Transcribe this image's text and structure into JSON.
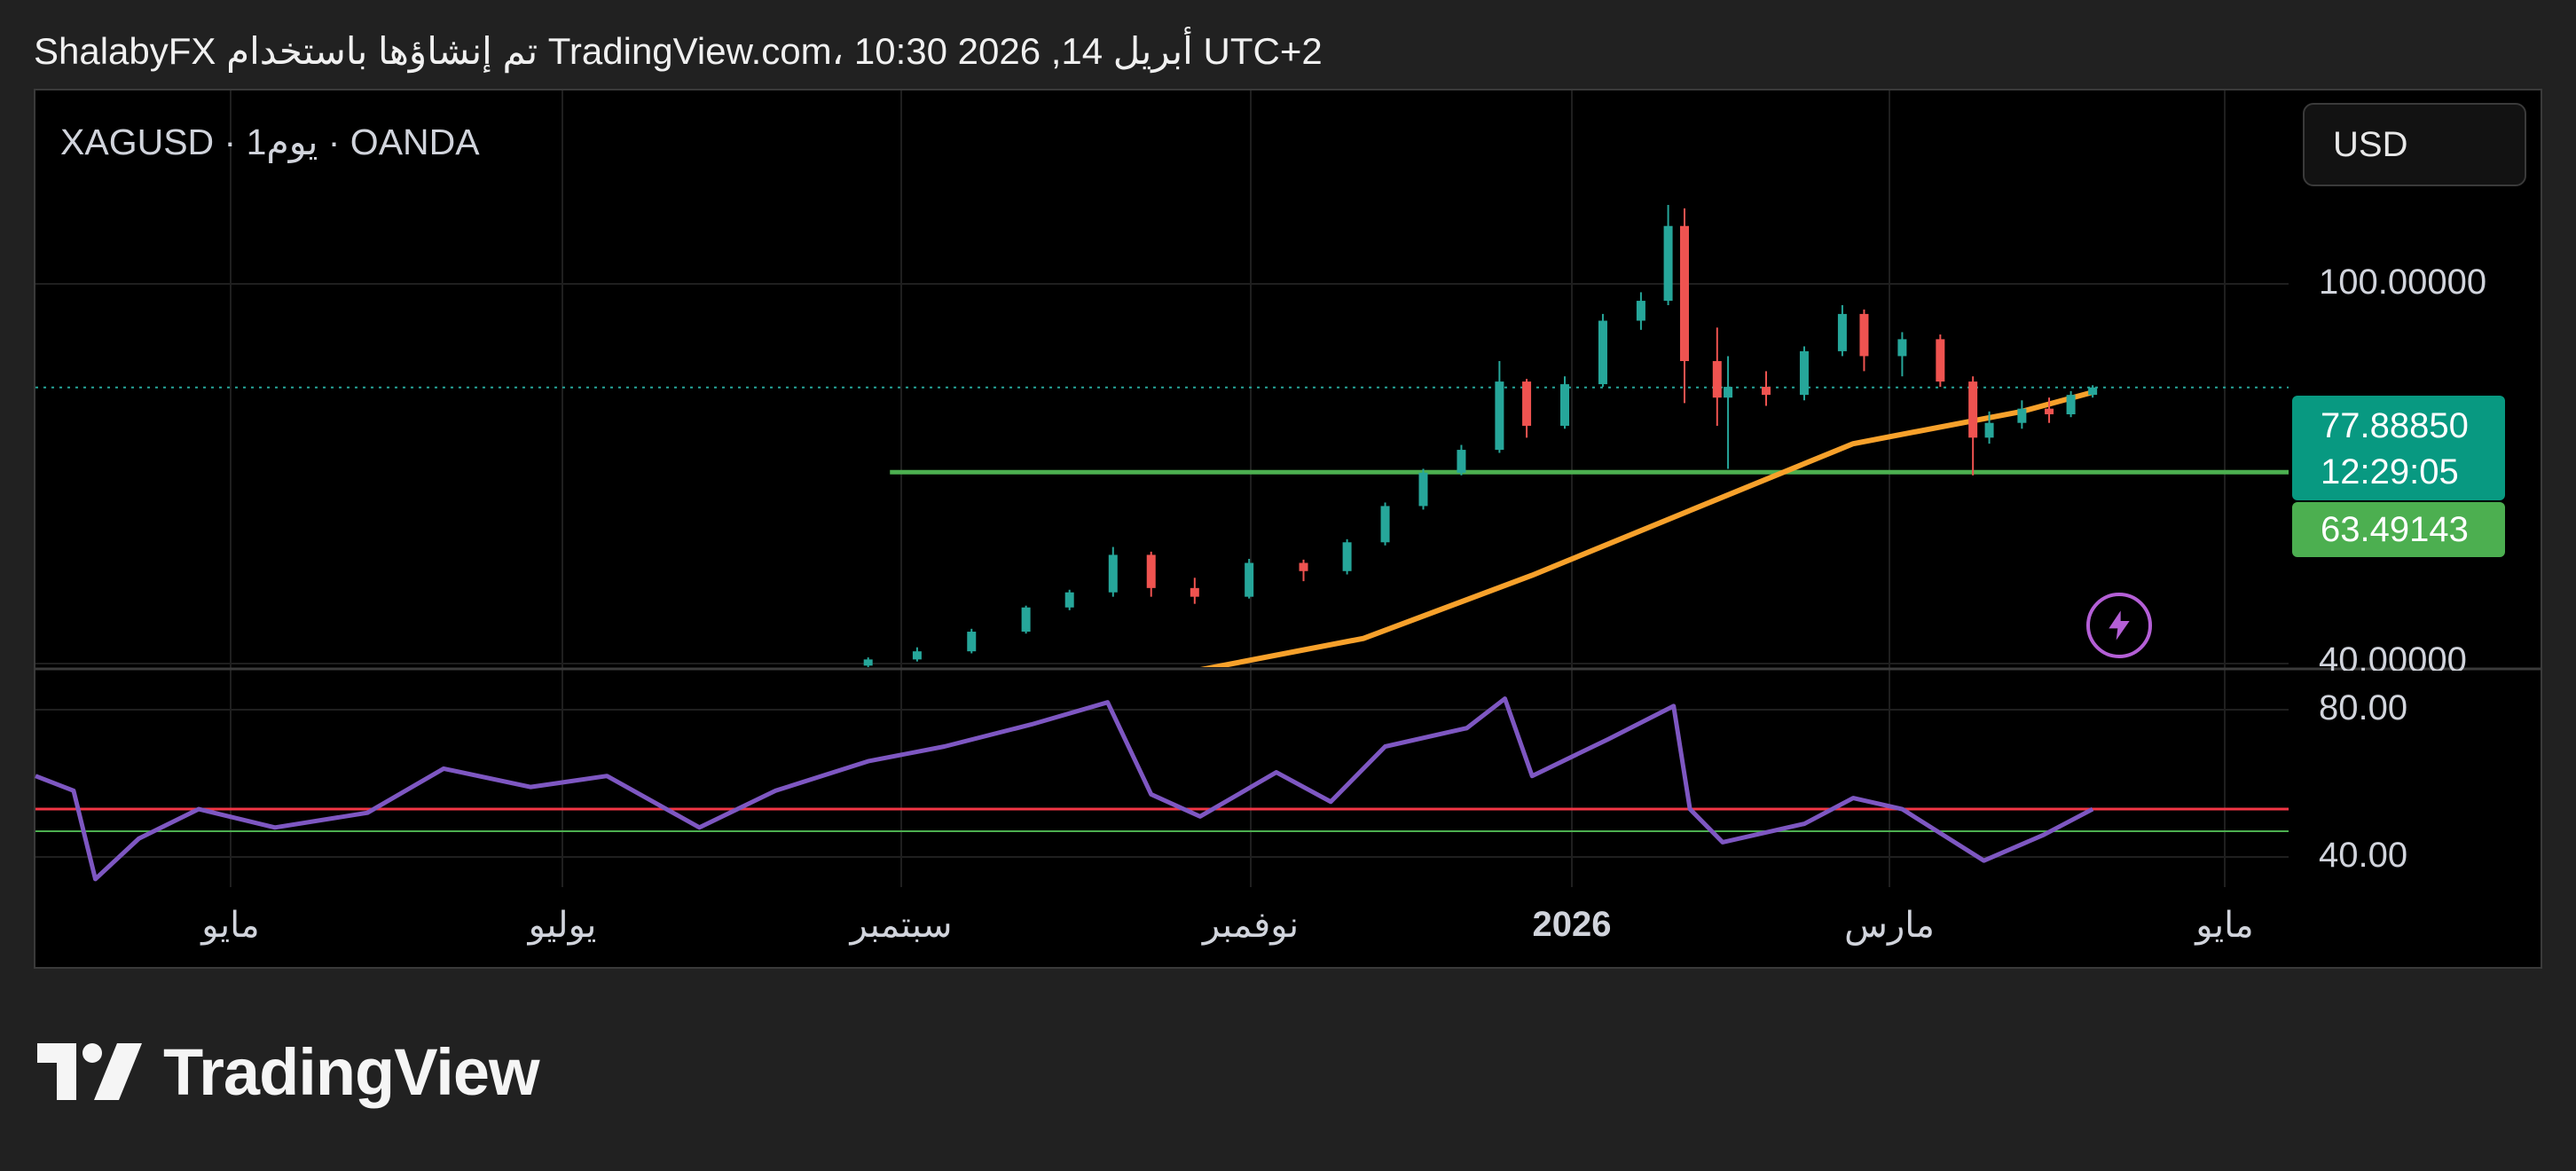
{
  "header": {
    "attribution": "ShalabyFX تم إنشاؤها باستخدام TradingView.com، 10:30 2026 ,14 أبريل UTC+2"
  },
  "symbol": {
    "label": "XAGUSD · 1يوم · OANDA"
  },
  "currency_button": {
    "label": "USD"
  },
  "price_tags": {
    "current_price": "77.88850",
    "countdown": "12:29:05",
    "level_price": "63.49143"
  },
  "price_axis": {
    "labels": [
      "100.00000",
      "40.00000"
    ]
  },
  "rsi_axis": {
    "labels": [
      "80.00",
      "40.00"
    ]
  },
  "time_axis": {
    "labels": [
      "مايو",
      "يوليو",
      "سبتمبر",
      "نوفمبر",
      "2026",
      "مارس",
      "مايو"
    ]
  },
  "logo": {
    "text": "TradingView"
  },
  "colors": {
    "background": "#212121",
    "chart_bg": "#000000",
    "up_candle": "#26a69a",
    "down_candle": "#ef5350",
    "moving_average": "#f7a12b",
    "support_line": "#4caf50",
    "rsi_line": "#7e57c2",
    "rsi_upper_line": "#f23645",
    "rsi_lower_line": "#4caf50",
    "current_tag": "#089981",
    "level_tag": "#4caf50",
    "bolt": "#b45fd6"
  },
  "icons": {
    "alert": "lightning-bolt-icon",
    "brand": "tradingview-logo-icon"
  },
  "chart_data": [
    {
      "type": "candlestick",
      "symbol": "XAGUSD",
      "interval": "1D",
      "x_range": [
        "2025-04-01",
        "2026-05-20"
      ],
      "y_scale": "log",
      "y_ticks": [
        40,
        100
      ],
      "candles": [
        {
          "date": "2025-09-01",
          "open": 39.8,
          "high": 40.6,
          "low": 39.6,
          "close": 40.4
        },
        {
          "date": "2025-09-10",
          "open": 40.4,
          "high": 41.6,
          "low": 40.2,
          "close": 41.2
        },
        {
          "date": "2025-09-20",
          "open": 41.2,
          "high": 43.5,
          "low": 41.0,
          "close": 43.2
        },
        {
          "date": "2025-09-30",
          "open": 43.2,
          "high": 46.0,
          "low": 43.0,
          "close": 45.8
        },
        {
          "date": "2025-10-08",
          "open": 45.8,
          "high": 47.8,
          "low": 45.5,
          "close": 47.5
        },
        {
          "date": "2025-10-16",
          "open": 47.5,
          "high": 53.0,
          "low": 47.0,
          "close": 52.0
        },
        {
          "date": "2025-10-23",
          "open": 52.0,
          "high": 52.4,
          "low": 47.0,
          "close": 48.0
        },
        {
          "date": "2025-10-31",
          "open": 48.0,
          "high": 49.2,
          "low": 46.2,
          "close": 47.0
        },
        {
          "date": "2025-11-10",
          "open": 47.0,
          "high": 51.5,
          "low": 46.8,
          "close": 51.0
        },
        {
          "date": "2025-11-20",
          "open": 51.0,
          "high": 51.4,
          "low": 48.8,
          "close": 50.0
        },
        {
          "date": "2025-11-28",
          "open": 50.0,
          "high": 54.0,
          "low": 49.6,
          "close": 53.6
        },
        {
          "date": "2025-12-05",
          "open": 53.6,
          "high": 59.0,
          "low": 53.2,
          "close": 58.5
        },
        {
          "date": "2025-12-12",
          "open": 58.5,
          "high": 64.0,
          "low": 58.0,
          "close": 63.4
        },
        {
          "date": "2025-12-19",
          "open": 63.4,
          "high": 67.8,
          "low": 63.0,
          "close": 67.0
        },
        {
          "date": "2025-12-26",
          "open": 67.0,
          "high": 83.0,
          "low": 66.5,
          "close": 79.0
        },
        {
          "date": "2025-12-31",
          "open": 79.0,
          "high": 79.5,
          "low": 69.0,
          "close": 71.0
        },
        {
          "date": "2026-01-07",
          "open": 71.0,
          "high": 80.0,
          "low": 70.5,
          "close": 78.5
        },
        {
          "date": "2026-01-14",
          "open": 78.5,
          "high": 93.0,
          "low": 78.0,
          "close": 91.5
        },
        {
          "date": "2026-01-21",
          "open": 91.5,
          "high": 98.0,
          "low": 89.5,
          "close": 96.0
        },
        {
          "date": "2026-01-26",
          "open": 96.0,
          "high": 121.0,
          "low": 95.0,
          "close": 115.0
        },
        {
          "date": "2026-01-29",
          "open": 115.0,
          "high": 120.0,
          "low": 75.0,
          "close": 83.0
        },
        {
          "date": "2026-02-04",
          "open": 83.0,
          "high": 90.0,
          "low": 71.0,
          "close": 76.0
        },
        {
          "date": "2026-02-06",
          "open": 76.0,
          "high": 84.0,
          "low": 64.0,
          "close": 78.0
        },
        {
          "date": "2026-02-13",
          "open": 78.0,
          "high": 81.0,
          "low": 74.5,
          "close": 76.5
        },
        {
          "date": "2026-02-20",
          "open": 76.5,
          "high": 86.0,
          "low": 75.5,
          "close": 85.0
        },
        {
          "date": "2026-02-27",
          "open": 85.0,
          "high": 95.0,
          "low": 84.0,
          "close": 93.0
        },
        {
          "date": "2026-03-03",
          "open": 93.0,
          "high": 94.0,
          "low": 81.0,
          "close": 84.0
        },
        {
          "date": "2026-03-10",
          "open": 84.0,
          "high": 89.0,
          "low": 80.0,
          "close": 87.5
        },
        {
          "date": "2026-03-17",
          "open": 87.5,
          "high": 88.5,
          "low": 78.0,
          "close": 79.0
        },
        {
          "date": "2026-03-23",
          "open": 79.0,
          "high": 80.0,
          "low": 63.0,
          "close": 69.0
        },
        {
          "date": "2026-03-26",
          "open": 69.0,
          "high": 73.5,
          "low": 68.0,
          "close": 71.5
        },
        {
          "date": "2026-04-01",
          "open": 71.5,
          "high": 75.5,
          "low": 70.5,
          "close": 74.0
        },
        {
          "date": "2026-04-06",
          "open": 74.0,
          "high": 76.0,
          "low": 71.5,
          "close": 73.0
        },
        {
          "date": "2026-04-10",
          "open": 73.0,
          "high": 77.2,
          "low": 72.5,
          "close": 76.5
        },
        {
          "date": "2026-04-14",
          "open": 76.5,
          "high": 78.3,
          "low": 76.0,
          "close": 77.8885
        }
      ],
      "moving_average": [
        {
          "date": "2025-10-01",
          "value": 37.0
        },
        {
          "date": "2025-11-01",
          "value": 39.4
        },
        {
          "date": "2025-12-01",
          "value": 42.5
        },
        {
          "date": "2026-01-01",
          "value": 49.5
        },
        {
          "date": "2026-02-01",
          "value": 58.5
        },
        {
          "date": "2026-03-01",
          "value": 68.0
        },
        {
          "date": "2026-04-01",
          "value": 73.5
        },
        {
          "date": "2026-04-14",
          "value": 77.0
        }
      ],
      "horizontal_line": {
        "value": 63.49143,
        "from": "2025-09-05"
      },
      "last_price": 77.8885,
      "countdown": "12:29:05"
    },
    {
      "type": "line",
      "y_ticks": [
        40,
        80
      ],
      "upper_level": 53,
      "lower_level": 47,
      "series": [
        {
          "values": [
            {
              "date": "2025-04-01",
              "value": 62
            },
            {
              "date": "2025-04-08",
              "value": 58
            },
            {
              "date": "2025-04-12",
              "value": 34
            },
            {
              "date": "2025-04-20",
              "value": 45
            },
            {
              "date": "2025-05-01",
              "value": 53
            },
            {
              "date": "2025-05-15",
              "value": 48
            },
            {
              "date": "2025-06-01",
              "value": 52
            },
            {
              "date": "2025-06-15",
              "value": 64
            },
            {
              "date": "2025-07-01",
              "value": 59
            },
            {
              "date": "2025-07-15",
              "value": 62
            },
            {
              "date": "2025-08-01",
              "value": 48
            },
            {
              "date": "2025-08-15",
              "value": 58
            },
            {
              "date": "2025-09-01",
              "value": 66
            },
            {
              "date": "2025-09-15",
              "value": 70
            },
            {
              "date": "2025-10-01",
              "value": 76
            },
            {
              "date": "2025-10-15",
              "value": 82
            },
            {
              "date": "2025-10-23",
              "value": 57
            },
            {
              "date": "2025-11-01",
              "value": 51
            },
            {
              "date": "2025-11-15",
              "value": 63
            },
            {
              "date": "2025-11-25",
              "value": 55
            },
            {
              "date": "2025-12-05",
              "value": 70
            },
            {
              "date": "2025-12-20",
              "value": 75
            },
            {
              "date": "2025-12-27",
              "value": 83
            },
            {
              "date": "2026-01-01",
              "value": 62
            },
            {
              "date": "2026-01-15",
              "value": 72
            },
            {
              "date": "2026-01-27",
              "value": 81
            },
            {
              "date": "2026-01-30",
              "value": 53
            },
            {
              "date": "2026-02-05",
              "value": 44
            },
            {
              "date": "2026-02-20",
              "value": 49
            },
            {
              "date": "2026-03-01",
              "value": 56
            },
            {
              "date": "2026-03-10",
              "value": 53
            },
            {
              "date": "2026-03-25",
              "value": 39
            },
            {
              "date": "2026-04-05",
              "value": 46
            },
            {
              "date": "2026-04-14",
              "value": 53
            }
          ]
        }
      ]
    }
  ]
}
